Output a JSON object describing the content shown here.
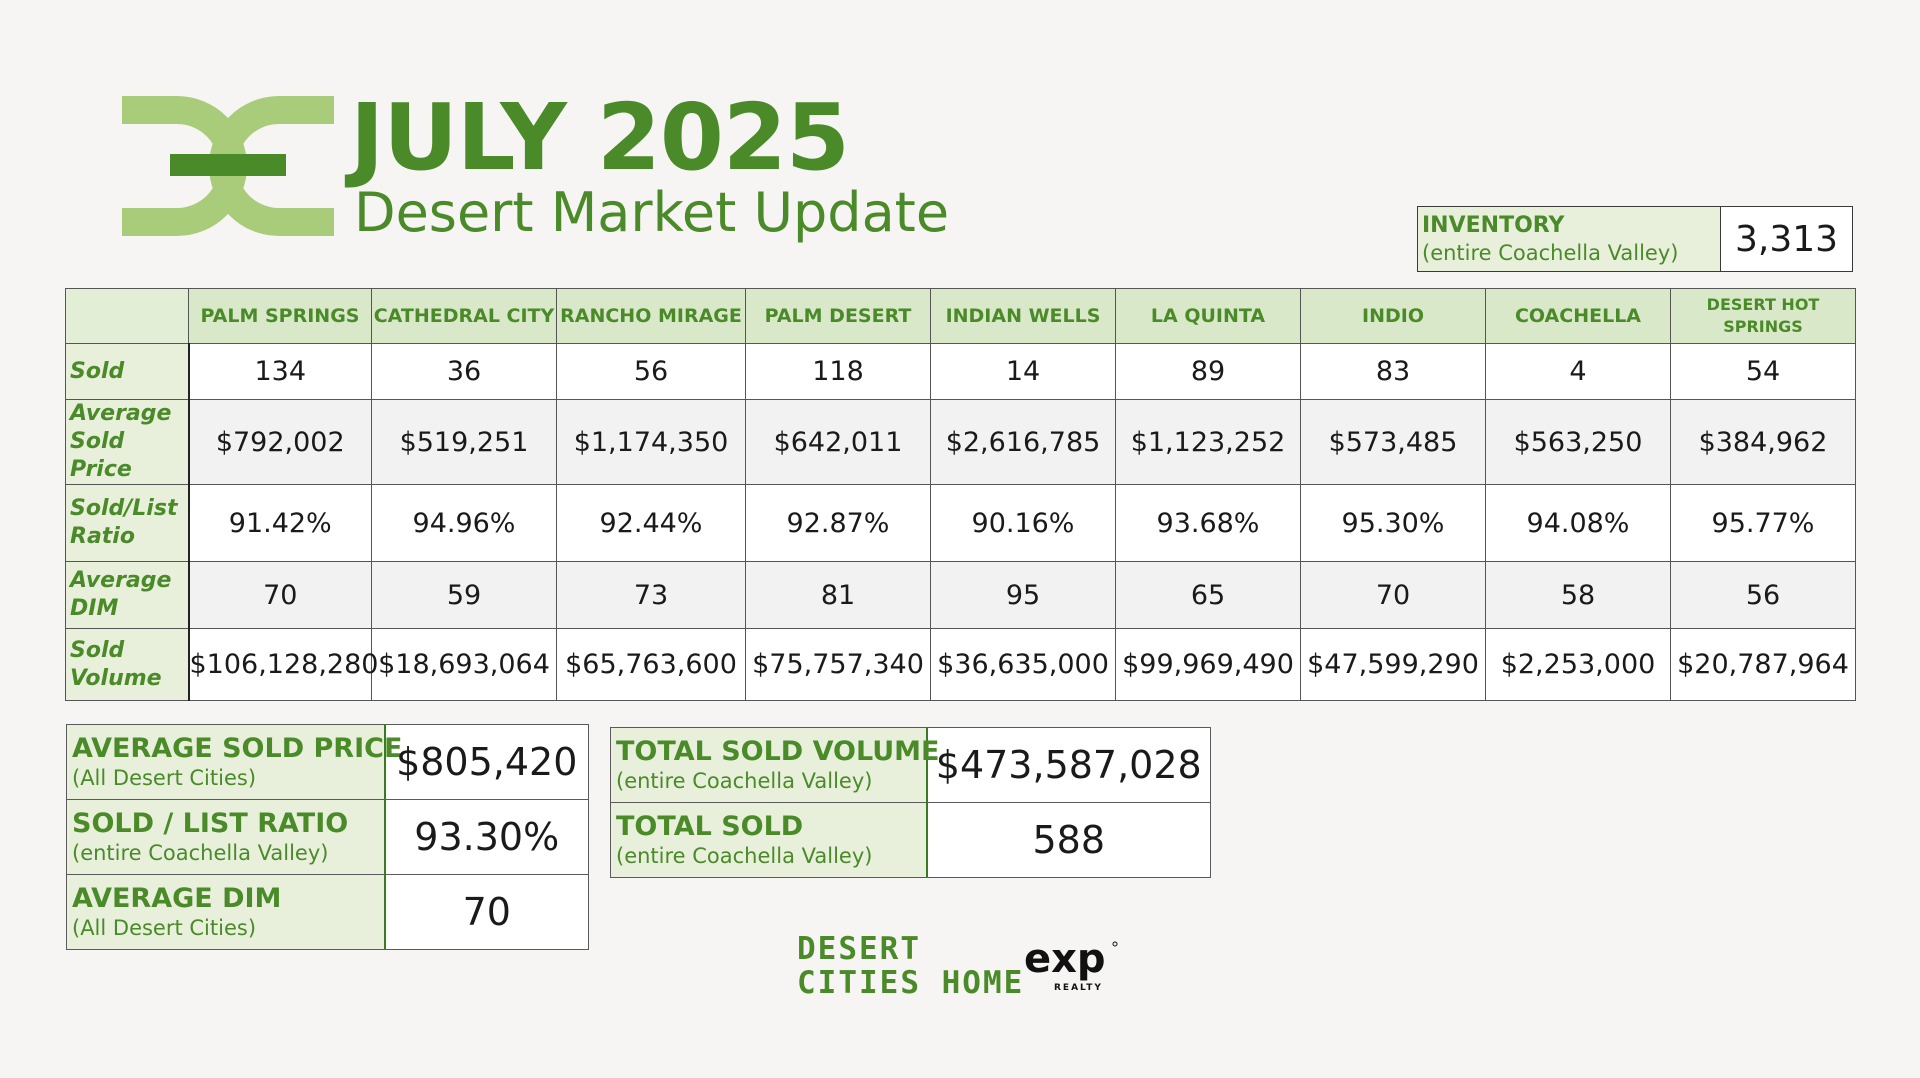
{
  "header": {
    "title": "JULY 2025",
    "subtitle": "Desert Market Update",
    "colors": {
      "brand_green": "#4a8a28",
      "logo_light_green": "#a8cc7a"
    }
  },
  "inventory": {
    "label": "INVENTORY",
    "sublabel": "(entire Coachella Valley)",
    "value": "3,313"
  },
  "table": {
    "columns": [
      "PALM SPRINGS",
      "CATHEDRAL CITY",
      "RANCHO MIRAGE",
      "PALM DESERT",
      "INDIAN WELLS",
      "LA QUINTA",
      "INDIO",
      "COACHELLA",
      "DESERT HOT SPRINGS"
    ],
    "rows": [
      {
        "label_line1": "Sold",
        "label_line2": "",
        "values": [
          "134",
          "36",
          "56",
          "118",
          "14",
          "89",
          "83",
          "4",
          "54"
        ]
      },
      {
        "label_line1": "Average",
        "label_line2": "Sold Price",
        "values": [
          "$792,002",
          "$519,251",
          "$1,174,350",
          "$642,011",
          "$2,616,785",
          "$1,123,252",
          "$573,485",
          "$563,250",
          "$384,962"
        ]
      },
      {
        "label_line1": "Sold/List",
        "label_line2": "Ratio",
        "values": [
          "91.42%",
          "94.96%",
          "92.44%",
          "92.87%",
          "90.16%",
          "93.68%",
          "95.30%",
          "94.08%",
          "95.77%"
        ]
      },
      {
        "label_line1": "Average",
        "label_line2": "DIM",
        "values": [
          "70",
          "59",
          "73",
          "81",
          "95",
          "65",
          "70",
          "58",
          "56"
        ]
      },
      {
        "label_line1": "Sold",
        "label_line2": "Volume",
        "values": [
          "$106,128,280",
          "$18,693,064",
          "$65,763,600",
          "$75,757,340",
          "$36,635,000",
          "$99,969,490",
          "$47,599,290",
          "$2,253,000",
          "$20,787,964"
        ]
      }
    ]
  },
  "summary_left": [
    {
      "label": "AVERAGE SOLD PRICE",
      "sublabel": "(All Desert Cities)",
      "value": "$805,420"
    },
    {
      "label": "SOLD / LIST RATIO",
      "sublabel": "(entire Coachella Valley)",
      "value": "93.30%"
    },
    {
      "label": "AVERAGE DIM",
      "sublabel": "(All Desert Cities)",
      "value": "70"
    }
  ],
  "summary_right": [
    {
      "label": "TOTAL SOLD VOLUME",
      "sublabel": "(entire Coachella Valley)",
      "value": "$473,587,028"
    },
    {
      "label": "TOTAL SOLD",
      "sublabel": "(entire Coachella Valley)",
      "value": "588"
    }
  ],
  "footer": {
    "brand_line1": "DESERT",
    "brand_line2": "CITIES HOME",
    "partner_logo": "exp-realty-logo"
  }
}
